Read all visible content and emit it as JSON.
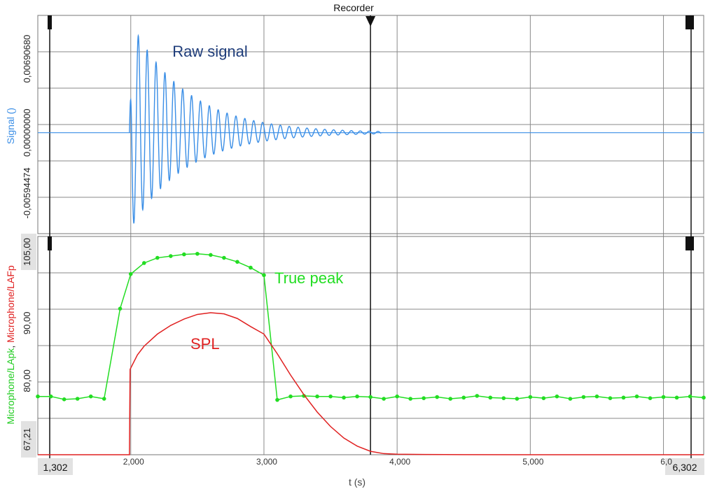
{
  "recorder_title": "Recorder",
  "x_axis": {
    "label": "t (s)",
    "ticks": [
      "2,000",
      "3,000",
      "4,000",
      "5,000",
      "6,0"
    ],
    "tick_values": [
      2,
      3,
      4,
      5,
      6
    ],
    "range": [
      1.302,
      6.302
    ],
    "start_label": "1,302",
    "end_label": "6,302"
  },
  "cursor": {
    "t": 3.8
  },
  "chart_data": [
    {
      "type": "line",
      "panel": "top",
      "ylabel": "Signal ()",
      "ytick_labels": [
        "0,00690680",
        "0,00000000",
        "-0,00594474"
      ],
      "ylim": [
        -0.00594474,
        0.0069068
      ],
      "annotation": "Raw signal",
      "series": [
        {
          "color": "#3a8ee6",
          "description_of_shape": "decaying sinusoid",
          "onset_t": 1.99,
          "end_t": 3.88,
          "frequency_hz": 15,
          "decay_per_s": 2.4,
          "x_peak_first": [
            2.0,
            2.05,
            2.1,
            2.15,
            2.2,
            2.3,
            2.4,
            2.5,
            2.6,
            2.8,
            3.0,
            3.4,
            3.8
          ],
          "y_envelope": [
            0.0069,
            0.0058,
            0.005,
            0.0043,
            0.0036,
            0.0028,
            0.0021,
            0.0016,
            0.0012,
            0.0007,
            0.0004,
            0.00012,
            3e-05
          ]
        }
      ],
      "grid": true
    },
    {
      "type": "line",
      "panel": "bottom",
      "ylabel_parts": [
        "Microphone/LApk",
        ", ",
        "Microphone/LAFp"
      ],
      "ylabel_colors": [
        "#22cc22",
        "#222222",
        "#e02020"
      ],
      "ytick_labels": [
        "105,00",
        "90,00",
        "80,00",
        "67,21"
      ],
      "ytick_values": [
        105,
        90,
        80,
        67.21
      ],
      "ylim": [
        67.21,
        105
      ],
      "annotations": [
        "True peak",
        "SPL"
      ],
      "series": [
        {
          "name": "True peak",
          "color": "#22dd22",
          "x": [
            1.302,
            1.4,
            1.5,
            1.6,
            1.7,
            1.8,
            1.92,
            2.0,
            2.1,
            2.2,
            2.3,
            2.4,
            2.5,
            2.6,
            2.7,
            2.8,
            2.9,
            3.0,
            3.1,
            3.2,
            3.3,
            3.4,
            3.5,
            3.6,
            3.7,
            3.8,
            3.9,
            4.0,
            4.1,
            4.2,
            4.3,
            4.4,
            4.5,
            4.6,
            4.7,
            4.8,
            4.9,
            5.0,
            5.1,
            5.2,
            5.3,
            5.4,
            5.5,
            5.6,
            5.7,
            5.8,
            5.9,
            6.0,
            6.1,
            6.2,
            6.302
          ],
          "y": [
            77.3,
            77.3,
            76.8,
            76.9,
            77.3,
            76.9,
            92.5,
            98.5,
            100.4,
            101.3,
            101.6,
            101.9,
            102.0,
            101.8,
            101.3,
            100.6,
            99.6,
            98.3,
            76.7,
            77.3,
            77.4,
            77.3,
            77.3,
            77.1,
            77.3,
            77.2,
            76.9,
            77.3,
            76.9,
            77.0,
            77.2,
            76.9,
            77.1,
            77.4,
            77.1,
            77.0,
            76.9,
            77.2,
            77.0,
            77.3,
            76.9,
            77.2,
            77.3,
            77.0,
            77.1,
            77.3,
            77.0,
            77.2,
            77.1,
            77.3,
            77.1
          ],
          "markers": true
        },
        {
          "name": "SPL",
          "color": "#e02020",
          "x": [
            1.302,
            1.99,
            1.995,
            2.05,
            2.1,
            2.2,
            2.3,
            2.4,
            2.5,
            2.6,
            2.7,
            2.8,
            2.9,
            3.0,
            3.1,
            3.2,
            3.3,
            3.4,
            3.5,
            3.6,
            3.7,
            3.8,
            3.9,
            4.0,
            4.2,
            4.5,
            5.0,
            6.302
          ],
          "y": [
            67.21,
            67.21,
            82.0,
            84.5,
            86.0,
            88.1,
            89.6,
            90.7,
            91.5,
            91.8,
            91.6,
            90.8,
            89.4,
            88.1,
            84.7,
            81.0,
            77.6,
            74.6,
            72.1,
            70.1,
            68.7,
            67.8,
            67.4,
            67.3,
            67.25,
            67.22,
            67.21,
            67.21
          ],
          "markers": false
        }
      ],
      "grid": true
    }
  ]
}
